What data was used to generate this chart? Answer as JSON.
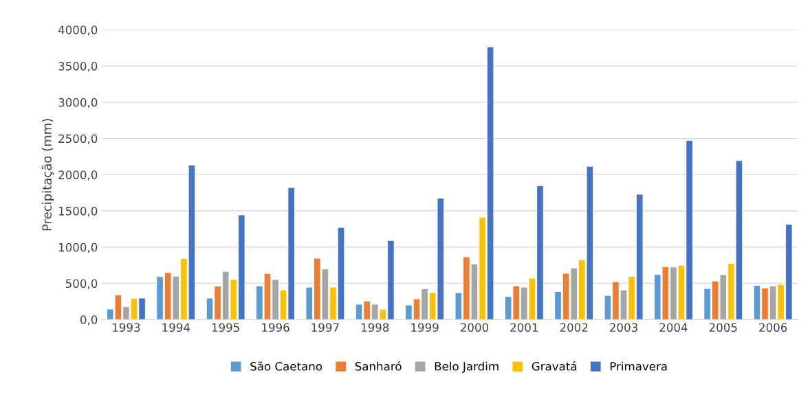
{
  "chart_data": {
    "type": "bar",
    "ylabel": "Precipitação (mm)",
    "categories": [
      "1993",
      "1994",
      "1995",
      "1996",
      "1997",
      "1998",
      "1999",
      "2000",
      "2001",
      "2002",
      "2003",
      "2004",
      "2005",
      "2006"
    ],
    "series": [
      {
        "name": "São Caetano",
        "color": "#5b9bd5",
        "values": [
          145,
          594,
          296,
          462,
          447,
          211,
          201,
          371,
          318,
          387,
          333,
          623,
          428,
          472
        ]
      },
      {
        "name": "Sanharó",
        "color": "#ed7d31",
        "values": [
          340,
          648,
          462,
          635,
          846,
          255,
          286,
          865,
          465,
          638,
          522,
          730,
          531,
          434
        ]
      },
      {
        "name": "Belo Jardim",
        "color": "#a5a5a5",
        "values": [
          176,
          598,
          664,
          553,
          698,
          211,
          425,
          767,
          447,
          711,
          409,
          726,
          620,
          462
        ]
      },
      {
        "name": "Gravatá",
        "color": "#ffc000",
        "values": [
          292,
          843,
          553,
          409,
          447,
          142,
          371,
          1413,
          569,
          824,
          594,
          748,
          774,
          484
        ]
      },
      {
        "name": "Primavera",
        "color": "#4472c4",
        "values": [
          296,
          2132,
          1444,
          1822,
          1271,
          1091,
          1674,
          3763,
          1847,
          2114,
          1729,
          2473,
          2194,
          1314
        ]
      }
    ],
    "ylim": [
      0,
      4000
    ],
    "yticks": [
      {
        "value": 0,
        "label": "0,0"
      },
      {
        "value": 500,
        "label": "500,0"
      },
      {
        "value": 1000,
        "label": "1000,0"
      },
      {
        "value": 1500,
        "label": "1500,0"
      },
      {
        "value": 2000,
        "label": "2000,0"
      },
      {
        "value": 2500,
        "label": "2500,0"
      },
      {
        "value": 3000,
        "label": "3000,0"
      },
      {
        "value": 3500,
        "label": "3500,0"
      },
      {
        "value": 4000,
        "label": "4000,0"
      }
    ],
    "grid": "y",
    "legend": "bottom"
  }
}
